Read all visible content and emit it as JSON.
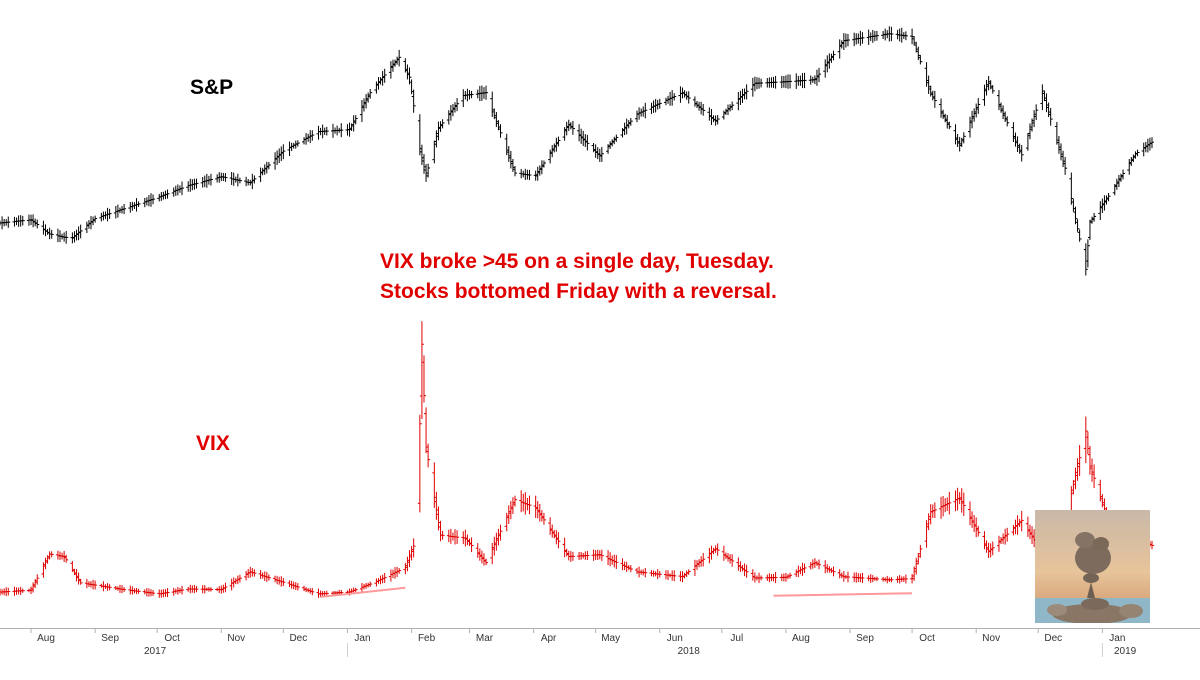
{
  "chart_data": [
    {
      "type": "ohlc",
      "label": "S&P",
      "color": "#000000",
      "x_range": [
        "2017-07-17",
        "2019-01-25"
      ],
      "points": [
        [
          "2017-07-17",
          2465
        ],
        [
          "2017-08-01",
          2473
        ],
        [
          "2017-08-10",
          2438
        ],
        [
          "2017-08-17",
          2430
        ],
        [
          "2017-08-21",
          2428
        ],
        [
          "2017-09-01",
          2476
        ],
        [
          "2017-09-15",
          2500
        ],
        [
          "2017-10-02",
          2529
        ],
        [
          "2017-10-16",
          2557
        ],
        [
          "2017-11-01",
          2579
        ],
        [
          "2017-11-15",
          2564
        ],
        [
          "2017-12-01",
          2642
        ],
        [
          "2017-12-18",
          2690
        ],
        [
          "2018-01-02",
          2695
        ],
        [
          "2018-01-12",
          2786
        ],
        [
          "2018-01-26",
          2873
        ],
        [
          "2018-01-31",
          2824
        ],
        [
          "2018-02-05",
          2648
        ],
        [
          "2018-02-08",
          2581
        ],
        [
          "2018-02-14",
          2698
        ],
        [
          "2018-02-26",
          2779
        ],
        [
          "2018-03-09",
          2786
        ],
        [
          "2018-03-23",
          2588
        ],
        [
          "2018-04-02",
          2581
        ],
        [
          "2018-04-18",
          2708
        ],
        [
          "2018-05-03",
          2630
        ],
        [
          "2018-05-21",
          2733
        ],
        [
          "2018-06-12",
          2786
        ],
        [
          "2018-06-28",
          2716
        ],
        [
          "2018-07-17",
          2809
        ],
        [
          "2018-08-01",
          2813
        ],
        [
          "2018-08-15",
          2818
        ],
        [
          "2018-08-29",
          2914
        ],
        [
          "2018-09-20",
          2931
        ],
        [
          "2018-10-01",
          2924
        ],
        [
          "2018-10-10",
          2785
        ],
        [
          "2018-10-24",
          2656
        ],
        [
          "2018-11-07",
          2813
        ],
        [
          "2018-11-23",
          2633
        ],
        [
          "2018-12-03",
          2790
        ],
        [
          "2018-12-14",
          2600
        ],
        [
          "2018-12-24",
          2351
        ],
        [
          "2018-12-26",
          2467
        ],
        [
          "2019-01-04",
          2531
        ],
        [
          "2019-01-17",
          2635
        ],
        [
          "2019-01-25",
          2664
        ]
      ]
    },
    {
      "type": "ohlc",
      "label": "VIX",
      "color": "#e00000",
      "x_range": [
        "2017-07-17",
        "2019-01-25"
      ],
      "points": [
        [
          "2017-07-17",
          9.8
        ],
        [
          "2017-08-01",
          10.1
        ],
        [
          "2017-08-10",
          16.0
        ],
        [
          "2017-08-17",
          15.6
        ],
        [
          "2017-08-25",
          11.3
        ],
        [
          "2017-09-15",
          10.2
        ],
        [
          "2017-10-02",
          9.5
        ],
        [
          "2017-10-16",
          10.3
        ],
        [
          "2017-11-01",
          10.2
        ],
        [
          "2017-11-15",
          13.1
        ],
        [
          "2017-12-01",
          11.4
        ],
        [
          "2017-12-18",
          9.5
        ],
        [
          "2018-01-02",
          9.8
        ],
        [
          "2018-01-15",
          11.5
        ],
        [
          "2018-01-29",
          13.8
        ],
        [
          "2018-02-02",
          17.3
        ],
        [
          "2018-02-05",
          37.3
        ],
        [
          "2018-02-06",
          50.3
        ],
        [
          "2018-02-08",
          33.5
        ],
        [
          "2018-02-15",
          19.1
        ],
        [
          "2018-02-27",
          18.6
        ],
        [
          "2018-03-09",
          14.6
        ],
        [
          "2018-03-23",
          24.9
        ],
        [
          "2018-04-02",
          23.6
        ],
        [
          "2018-04-18",
          15.6
        ],
        [
          "2018-05-03",
          15.9
        ],
        [
          "2018-05-21",
          13.1
        ],
        [
          "2018-06-12",
          12.3
        ],
        [
          "2018-06-28",
          16.9
        ],
        [
          "2018-07-17",
          12.1
        ],
        [
          "2018-08-01",
          12.2
        ],
        [
          "2018-08-15",
          14.6
        ],
        [
          "2018-08-29",
          12.3
        ],
        [
          "2018-09-20",
          11.8
        ],
        [
          "2018-10-01",
          12.0
        ],
        [
          "2018-10-10",
          22.9
        ],
        [
          "2018-10-24",
          25.2
        ],
        [
          "2018-11-07",
          16.4
        ],
        [
          "2018-11-23",
          21.5
        ],
        [
          "2018-12-03",
          16.4
        ],
        [
          "2018-12-14",
          21.6
        ],
        [
          "2018-12-24",
          36.1
        ],
        [
          "2018-12-26",
          30.4
        ],
        [
          "2019-01-04",
          21.4
        ],
        [
          "2019-01-17",
          19.0
        ],
        [
          "2019-01-25",
          17.4
        ]
      ]
    }
  ],
  "trendlines": [
    {
      "series": "VIX",
      "from": [
        "2017-12-19",
        9.0
      ],
      "to": [
        "2018-01-29",
        10.5
      ],
      "color": "#ff9999"
    },
    {
      "series": "VIX",
      "from": [
        "2018-07-26",
        9.2
      ],
      "to": [
        "2018-10-01",
        9.6
      ],
      "color": "#ff9999"
    }
  ],
  "x_axis": {
    "months": [
      {
        "label": "Aug",
        "date": "2017-08-01"
      },
      {
        "label": "Sep",
        "date": "2017-09-01"
      },
      {
        "label": "Oct",
        "date": "2017-10-01"
      },
      {
        "label": "Nov",
        "date": "2017-11-01"
      },
      {
        "label": "Dec",
        "date": "2017-12-01"
      },
      {
        "label": "Jan",
        "date": "2018-01-01"
      },
      {
        "label": "Feb",
        "date": "2018-02-01"
      },
      {
        "label": "Mar",
        "date": "2018-03-01"
      },
      {
        "label": "Apr",
        "date": "2018-04-01"
      },
      {
        "label": "May",
        "date": "2018-05-01"
      },
      {
        "label": "Jun",
        "date": "2018-06-01"
      },
      {
        "label": "Jul",
        "date": "2018-07-01"
      },
      {
        "label": "Aug",
        "date": "2018-08-01"
      },
      {
        "label": "Sep",
        "date": "2018-09-01"
      },
      {
        "label": "Oct",
        "date": "2018-10-01"
      },
      {
        "label": "Nov",
        "date": "2018-11-01"
      },
      {
        "label": "Dec",
        "date": "2018-12-01"
      },
      {
        "label": "Jan",
        "date": "2019-01-01"
      }
    ],
    "years": [
      {
        "label": "2017",
        "date": "2017-09-30"
      },
      {
        "label": "2018",
        "date": "2018-06-15"
      },
      {
        "label": "2019",
        "date": "2019-01-12"
      }
    ]
  },
  "labels": {
    "sp": "S&P",
    "vix": "VIX",
    "annotation_line1": "VIX broke >45 on a single day, Tuesday.",
    "annotation_line2": "Stocks bottomed Friday with a reversal."
  }
}
